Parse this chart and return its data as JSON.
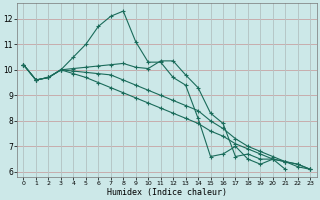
{
  "xlabel": "Humidex (Indice chaleur)",
  "x_values": [
    0,
    1,
    2,
    3,
    4,
    5,
    6,
    7,
    8,
    9,
    10,
    11,
    12,
    13,
    14,
    15,
    16,
    17,
    18,
    19,
    20,
    21,
    22,
    23
  ],
  "series": [
    [
      10.2,
      9.6,
      9.7,
      10.0,
      10.5,
      11.0,
      11.7,
      12.1,
      12.3,
      11.1,
      10.3,
      10.3,
      9.7,
      9.4,
      8.1,
      6.6,
      6.7,
      7.0,
      6.5,
      6.3,
      6.5,
      6.1,
      null,
      null
    ],
    [
      10.2,
      9.6,
      9.7,
      10.0,
      10.05,
      10.1,
      10.15,
      10.2,
      10.25,
      10.1,
      10.05,
      10.35,
      10.35,
      9.8,
      9.3,
      8.3,
      7.9,
      6.6,
      6.7,
      6.5,
      6.5,
      6.4,
      6.3,
      6.1
    ],
    [
      10.2,
      9.6,
      9.7,
      10.0,
      9.95,
      9.9,
      9.85,
      9.8,
      9.6,
      9.4,
      9.2,
      9.0,
      8.8,
      8.6,
      8.4,
      8.0,
      7.7,
      7.3,
      7.0,
      6.8,
      6.6,
      6.4,
      6.3,
      6.1
    ],
    [
      10.2,
      9.6,
      9.7,
      10.0,
      9.85,
      9.7,
      9.5,
      9.3,
      9.1,
      8.9,
      8.7,
      8.5,
      8.3,
      8.1,
      7.9,
      7.6,
      7.4,
      7.1,
      6.9,
      6.7,
      6.5,
      6.4,
      6.2,
      6.1
    ]
  ],
  "line_color": "#1a6b5a",
  "bg_color": "#cce8e8",
  "grid_major_color": "#b8d0d0",
  "grid_minor_color": "#d4bcbc",
  "text_color": "#000000",
  "ylim": [
    5.8,
    12.6
  ],
  "xlim": [
    -0.5,
    23.5
  ],
  "yticks": [
    6,
    7,
    8,
    9,
    10,
    11,
    12
  ],
  "xticks": [
    0,
    1,
    2,
    3,
    4,
    5,
    6,
    7,
    8,
    9,
    10,
    11,
    12,
    13,
    14,
    15,
    16,
    17,
    18,
    19,
    20,
    21,
    22,
    23
  ],
  "marker": "+",
  "markersize": 3,
  "linewidth": 0.8
}
